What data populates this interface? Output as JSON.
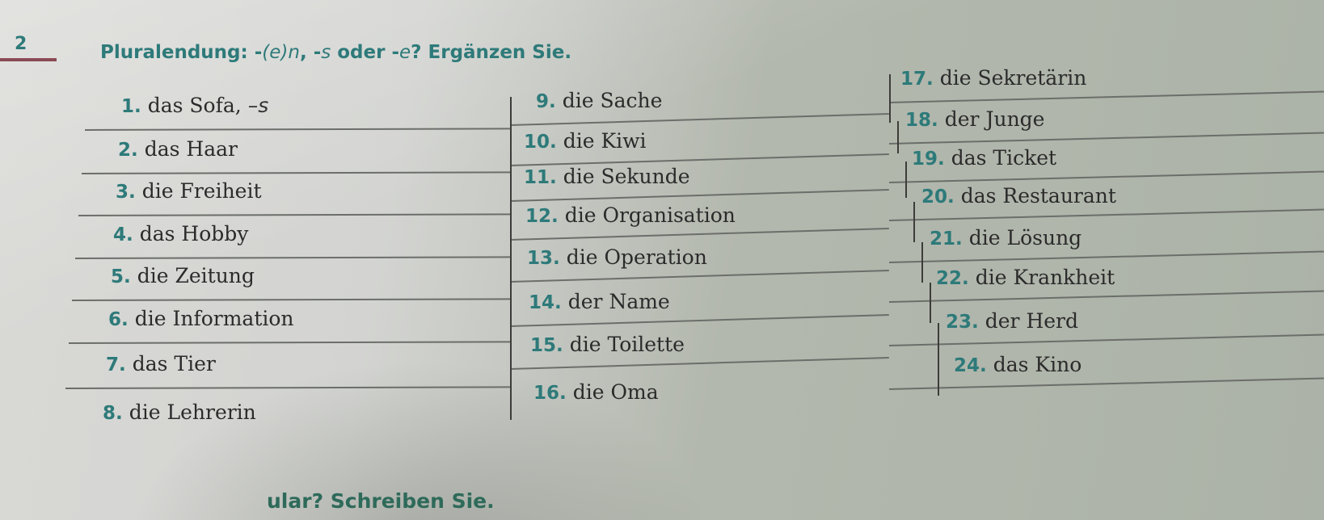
{
  "exercise": {
    "number": "2",
    "title_prefix": "Pluralendung: -",
    "title_em1": "(e)n",
    "title_mid1": ", -",
    "title_em2": "s",
    "title_mid2": " oder -",
    "title_em3": "e",
    "title_suffix": "? Ergänzen Sie."
  },
  "columns": [
    [
      {
        "n": "1.",
        "word": "das Sofa,",
        "answer": "–s"
      },
      {
        "n": "2.",
        "word": "das Haar"
      },
      {
        "n": "3.",
        "word": "die Freiheit"
      },
      {
        "n": "4.",
        "word": "das Hobby"
      },
      {
        "n": "5.",
        "word": "die Zeitung"
      },
      {
        "n": "6.",
        "word": "die Information"
      },
      {
        "n": "7.",
        "word": "das Tier"
      },
      {
        "n": "8.",
        "word": "die Lehrerin"
      }
    ],
    [
      {
        "n": "9.",
        "word": "die Sache"
      },
      {
        "n": "10.",
        "word": "die Kiwi"
      },
      {
        "n": "11.",
        "word": "die Sekunde"
      },
      {
        "n": "12.",
        "word": "die Organisation"
      },
      {
        "n": "13.",
        "word": "die Operation"
      },
      {
        "n": "14.",
        "word": "der Name"
      },
      {
        "n": "15.",
        "word": "die Toilette"
      },
      {
        "n": "16.",
        "word": "die Oma"
      }
    ],
    [
      {
        "n": "17.",
        "word": "die Sekretärin"
      },
      {
        "n": "18.",
        "word": "der Junge"
      },
      {
        "n": "19.",
        "word": "das Ticket"
      },
      {
        "n": "20.",
        "word": "das Restaurant"
      },
      {
        "n": "21.",
        "word": "die Lösung"
      },
      {
        "n": "22.",
        "word": "die Krankheit"
      },
      {
        "n": "23.",
        "word": "der Herd"
      },
      {
        "n": "24.",
        "word": "das Kino"
      }
    ]
  ],
  "next_exercise_partial": "ular? Schreiben Sie."
}
